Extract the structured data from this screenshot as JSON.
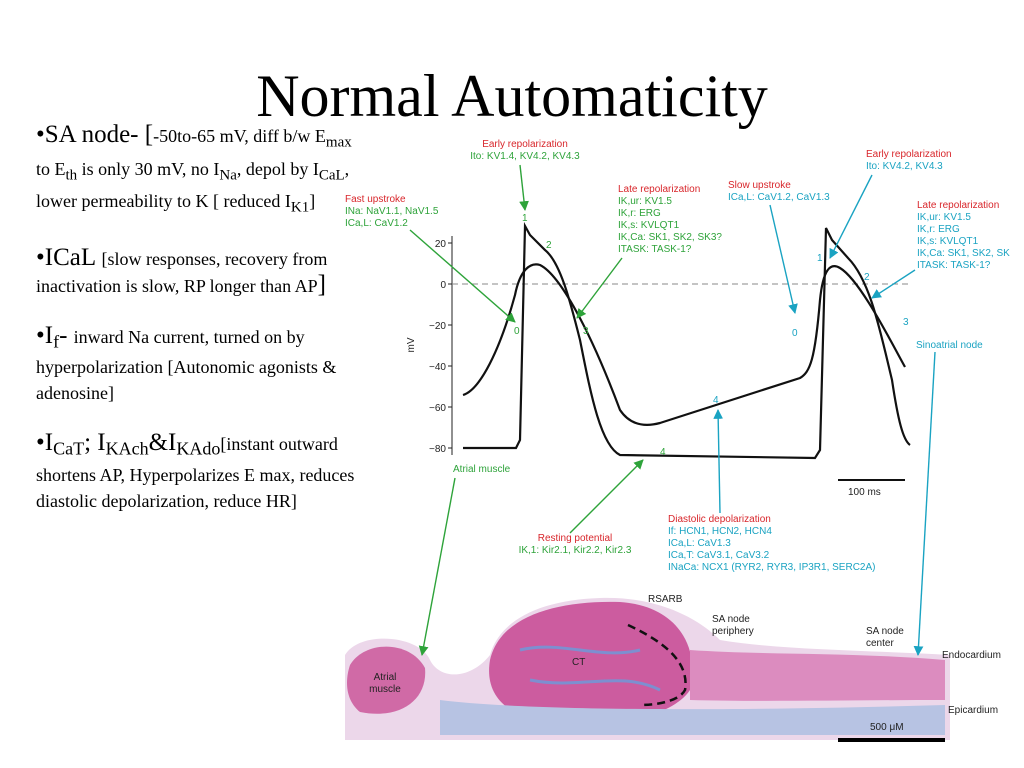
{
  "title": "Normal Automaticity",
  "bullets": [
    {
      "parts": [
        "•SA node- [",
        "-50to-65 mV, diff b/w E",
        "max",
        " to E",
        "th",
        " is only 30 mV, no I",
        "Na",
        ", depol by I",
        "CaL",
        ", lower permeability to K [ reduced I",
        "K1",
        "]"
      ]
    },
    {
      "parts": [
        "•ICaL ",
        "[slow responses, recovery from inactivation is slow, RP longer than AP",
        "]"
      ]
    },
    {
      "parts": [
        "•I",
        "f",
        "- ",
        "inward Na current, turned on by hyperpolarization [Autonomic agonists & adenosine]"
      ]
    },
    {
      "parts": [
        "•I",
        "CaT",
        "; I",
        "KAch",
        "&I",
        "KAdo",
        "[instant outward shortens AP, Hyperpolarizes E max, reduces diastolic depolarization, reduce HR]"
      ]
    }
  ],
  "figure": {
    "y_axis": {
      "label": "mV",
      "ticks": [
        "20",
        "0",
        "−20",
        "−40",
        "−60",
        "−80"
      ]
    },
    "annotations": [
      {
        "title": "Early repolarization",
        "lines": [
          "Ito: KV1.4, KV4.2, KV4.3"
        ]
      },
      {
        "title": "Fast upstroke",
        "lines": [
          "INa: NaV1.1, NaV1.5",
          "ICa,L: CaV1.2"
        ]
      },
      {
        "title": "Late repolarization",
        "lines": [
          "IK,ur: KV1.5",
          "IK,r: ERG",
          "IK,s: KVLQT1",
          "IK,Ca: SK1, SK2, SK3?",
          "ITASK: TASK-1?"
        ]
      },
      {
        "title": "Slow upstroke",
        "lines": [
          "ICa,L: CaV1.2, CaV1.3"
        ]
      },
      {
        "title": "Early repolarization",
        "lines": [
          "Ito: KV4.2, KV4.3"
        ]
      },
      {
        "title": "Late repolarization",
        "lines": [
          "IK,ur: KV1.5",
          "IK,r: ERG",
          "IK,s: KVLQT1",
          "IK,Ca: SK1, SK2, SK",
          "ITASK: TASK-1?"
        ]
      },
      {
        "title": "Resting potential",
        "lines": [
          "IK,1: Kir2.1, Kir2.2, Kir2.3"
        ]
      },
      {
        "title": "Diastolic depolarization",
        "lines": [
          "If: HCN1, HCN2, HCN4",
          "ICa,L: CaV1.3",
          "ICa,T: CaV3.1, CaV3.2",
          "INaCa: NCX1 (RYR2, RYR3, IP3R1, SERC2A)"
        ]
      }
    ],
    "phase_labels": {
      "atrial": [
        "1",
        "2",
        "0",
        "3",
        "4"
      ],
      "sinoatrial": [
        "4",
        "1",
        "2",
        "0",
        "3"
      ]
    },
    "trace_labels": [
      "Atrial muscle",
      "Sinoatrial node"
    ],
    "time_scale": "100 ms",
    "histology": {
      "labels": [
        "RSARB",
        "SA node",
        "periphery",
        "SA node",
        "center",
        "CT",
        "Atrial",
        "muscle",
        "Endocardium",
        "Epicardium"
      ],
      "scale": "500 μM"
    }
  }
}
